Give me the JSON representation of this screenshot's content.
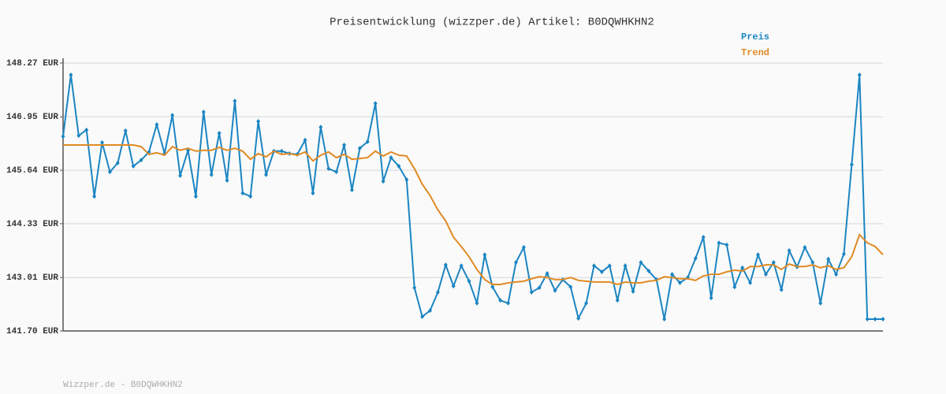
{
  "chart_data": {
    "type": "line",
    "title": "Preisentwicklung (wizzper.de) Artikel: B0DQWHKHN2",
    "footer": "Wizzper.de - B0DQWHKHN2",
    "legend": "top-right",
    "grid": true,
    "ylim": [
      141.7,
      148.27
    ],
    "yticks": [
      {
        "value": 141.7,
        "label": "141.70 EUR"
      },
      {
        "value": 143.01,
        "label": "143.01 EUR"
      },
      {
        "value": 144.33,
        "label": "144.33 EUR"
      },
      {
        "value": 145.64,
        "label": "145.64 EUR"
      },
      {
        "value": 146.95,
        "label": "146.95 EUR"
      },
      {
        "value": 148.27,
        "label": "148.27 EUR"
      }
    ],
    "series": [
      {
        "name": "Preis",
        "color": "#1b85c2",
        "markers": true,
        "values": [
          146.47,
          147.98,
          146.49,
          146.63,
          145.0,
          146.32,
          145.6,
          145.82,
          146.61,
          145.74,
          145.89,
          146.09,
          146.76,
          146.05,
          146.99,
          145.51,
          146.13,
          145.0,
          147.07,
          145.53,
          146.55,
          145.39,
          147.34,
          145.08,
          145.0,
          146.84,
          145.53,
          146.11,
          146.11,
          146.05,
          146.03,
          146.38,
          145.08,
          146.7,
          145.68,
          145.6,
          146.26,
          145.16,
          146.18,
          146.34,
          147.28,
          145.37,
          145.95,
          145.74,
          145.41,
          142.76,
          142.05,
          142.2,
          142.65,
          143.32,
          142.8,
          143.3,
          142.92,
          142.38,
          143.57,
          142.78,
          142.45,
          142.38,
          143.38,
          143.75,
          142.65,
          142.76,
          143.11,
          142.69,
          142.96,
          142.78,
          142.01,
          142.38,
          143.3,
          143.15,
          143.3,
          142.45,
          143.3,
          142.67,
          143.38,
          143.17,
          142.96,
          141.99,
          143.09,
          142.88,
          143.01,
          143.48,
          144.0,
          142.51,
          143.86,
          143.81,
          142.78,
          143.25,
          142.88,
          143.57,
          143.09,
          143.38,
          142.71,
          143.67,
          143.27,
          143.75,
          143.38,
          142.38,
          143.46,
          143.09,
          143.59,
          145.78,
          147.98,
          141.99,
          141.99,
          141.99
        ]
      },
      {
        "name": "Trend",
        "color": "#e08a24",
        "markers": false,
        "values": [
          146.26,
          146.26,
          146.26,
          146.26,
          146.26,
          146.26,
          146.26,
          146.26,
          146.26,
          146.26,
          146.22,
          146.03,
          146.07,
          146.01,
          146.22,
          146.13,
          146.18,
          146.11,
          146.13,
          146.13,
          146.2,
          146.13,
          146.18,
          146.11,
          145.91,
          146.05,
          145.97,
          146.11,
          146.03,
          146.05,
          146.01,
          146.09,
          145.87,
          146.01,
          146.09,
          145.95,
          146.03,
          145.91,
          145.93,
          145.95,
          146.11,
          145.99,
          146.09,
          146.01,
          145.99,
          145.68,
          145.3,
          145.02,
          144.67,
          144.4,
          144.0,
          143.77,
          143.52,
          143.21,
          142.96,
          142.84,
          142.84,
          142.88,
          142.9,
          142.92,
          142.98,
          143.03,
          143.01,
          142.96,
          142.96,
          143.01,
          142.94,
          142.92,
          142.9,
          142.9,
          142.9,
          142.84,
          142.9,
          142.88,
          142.88,
          142.92,
          142.94,
          143.03,
          143.01,
          142.98,
          142.98,
          142.94,
          143.05,
          143.09,
          143.09,
          143.15,
          143.19,
          143.17,
          143.28,
          143.28,
          143.32,
          143.32,
          143.21,
          143.34,
          143.28,
          143.28,
          143.32,
          143.25,
          143.3,
          143.21,
          143.25,
          143.52,
          144.06,
          143.86,
          143.77,
          143.57
        ]
      }
    ]
  }
}
